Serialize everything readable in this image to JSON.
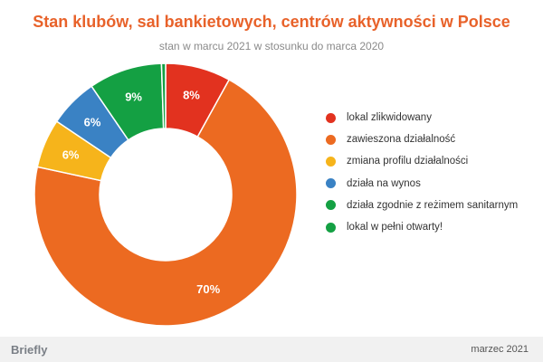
{
  "chart_data": {
    "type": "pie",
    "title": "Stan klubów, sal bankietowych, centrów aktywności w Polsce",
    "subtitle": "stan w marcu 2021 w stosunku do marca 2020",
    "categories": [
      "lokal zlikwidowany",
      "zawieszona działalność",
      "zmiana profilu działalności",
      "działa na wynos",
      "działa zgodnie z reżimem sanitarnym",
      "lokal w pełni otwarty!"
    ],
    "values": [
      8,
      70,
      6,
      6,
      9,
      0.5
    ],
    "data_labels": [
      "8%",
      "70%",
      "6%",
      "6%",
      "9%",
      ""
    ],
    "colors": [
      "#e2321f",
      "#ec6a21",
      "#f6b41b",
      "#3a82c4",
      "#14a043",
      "#14a043"
    ],
    "donut": true,
    "legend_position": "right"
  },
  "footer": {
    "brand": "Briefly",
    "date": "marzec 2021"
  }
}
